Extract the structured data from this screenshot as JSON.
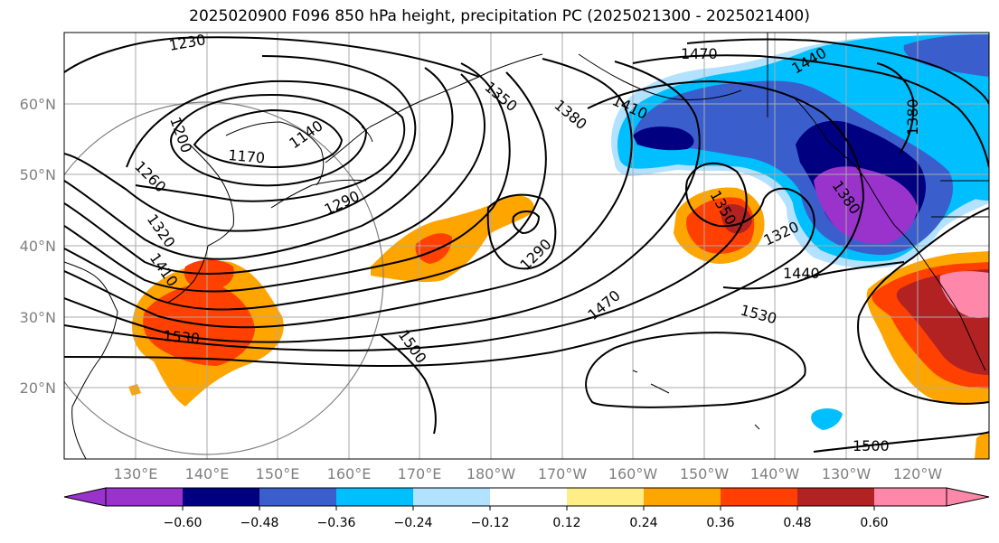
{
  "title": "2025020900 F096 850 hPa height, precipitation PC (2025021300 - 2025021400)",
  "colors": {
    "frame": "#000000",
    "grid": "#aaaaaa",
    "coast": "#000000",
    "contour": "#000000",
    "axis_label": "#808080"
  },
  "map": {
    "lon_labels": [
      "130°E",
      "140°E",
      "150°E",
      "160°E",
      "170°E",
      "180°W",
      "170°W",
      "160°W",
      "150°W",
      "140°W",
      "130°W",
      "120°W"
    ],
    "lat_labels": [
      "60°N",
      "50°N",
      "40°N",
      "30°N",
      "20°N"
    ]
  },
  "contour_labels": [
    {
      "text": "1230"
    },
    {
      "text": "1200"
    },
    {
      "text": "1170"
    },
    {
      "text": "1140"
    },
    {
      "text": "1260"
    },
    {
      "text": "1320"
    },
    {
      "text": "1410"
    },
    {
      "text": "1290"
    },
    {
      "text": "1350"
    },
    {
      "text": "1380"
    },
    {
      "text": "1410"
    },
    {
      "text": "1470"
    },
    {
      "text": "1440"
    },
    {
      "text": "1380"
    },
    {
      "text": "1290"
    },
    {
      "text": "1350"
    },
    {
      "text": "1320"
    },
    {
      "text": "1380"
    },
    {
      "text": "1440"
    },
    {
      "text": "1470"
    },
    {
      "text": "1530"
    },
    {
      "text": "1500"
    },
    {
      "text": "1530"
    },
    {
      "text": "1500"
    }
  ],
  "colorbar": {
    "colors": [
      "#9933cc",
      "#000080",
      "#3a5fcd",
      "#00bfff",
      "#b2e2ff",
      "#ffffff",
      "#ffee88",
      "#ffa500",
      "#ff4000",
      "#b22222",
      "#ff88aa"
    ],
    "tick_labels": [
      "−0.60",
      "−0.48",
      "−0.36",
      "−0.24",
      "−0.12",
      "0.12",
      "0.24",
      "0.36",
      "0.48",
      "0.60"
    ]
  }
}
